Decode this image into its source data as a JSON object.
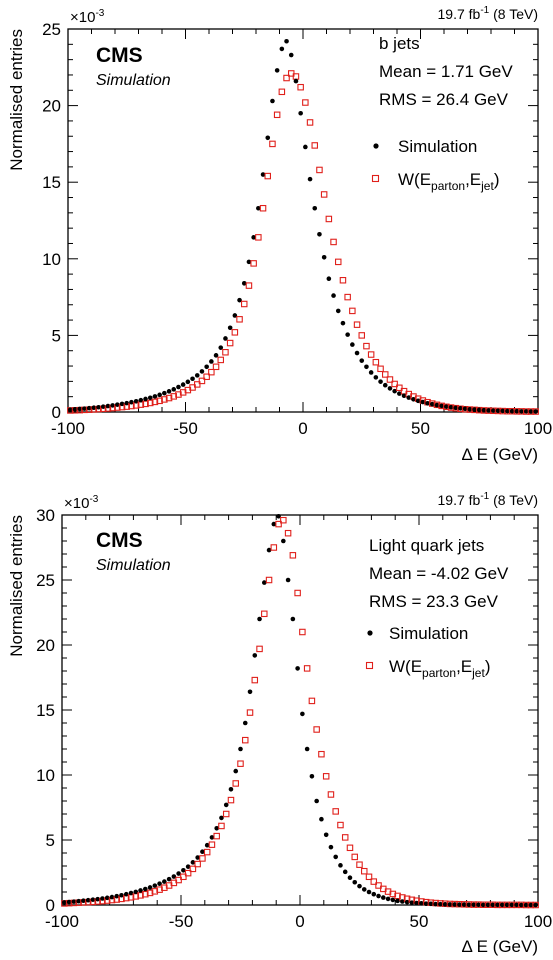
{
  "chart_data": [
    {
      "type": "scatter",
      "title": "",
      "lumi_label": "19.7 fb",
      "lumi_sup": "-1",
      "lumi_rest": " (8 TeV)",
      "exponent_base": "×10",
      "exponent_sup": "-3",
      "experiment": "CMS",
      "sublabel": "Simulation",
      "info_lines": [
        "b jets",
        "Mean = 1.71 GeV",
        "RMS = 26.4 GeV"
      ],
      "legend": {
        "sim": "Simulation",
        "w_main": "W(E",
        "w_sub1": "parton",
        "w_sep": ",E",
        "w_sub2": "jet",
        "w_close": ")"
      },
      "xlabel": "Δ E (GeV)",
      "ylabel": "Normalised entries",
      "xlim": [
        -100,
        100
      ],
      "ylim": [
        0,
        25
      ],
      "xticks": [
        -100,
        -50,
        0,
        50,
        100
      ],
      "yticks": [
        0,
        5,
        10,
        15,
        20,
        25
      ],
      "x": [
        -99,
        -97,
        -95,
        -93,
        -91,
        -89,
        -87,
        -85,
        -83,
        -81,
        -79,
        -77,
        -75,
        -73,
        -71,
        -69,
        -67,
        -65,
        -63,
        -61,
        -59,
        -57,
        -55,
        -53,
        -51,
        -49,
        -47,
        -45,
        -43,
        -41,
        -39,
        -37,
        -35,
        -33,
        -31,
        -29,
        -27,
        -25,
        -23,
        -21,
        -19,
        -17,
        -15,
        -13,
        -11,
        -9,
        -7,
        -5,
        -3,
        -1,
        1,
        3,
        5,
        7,
        9,
        11,
        13,
        15,
        17,
        19,
        21,
        23,
        25,
        27,
        29,
        31,
        33,
        35,
        37,
        39,
        41,
        43,
        45,
        47,
        49,
        51,
        53,
        55,
        57,
        59,
        61,
        63,
        65,
        67,
        69,
        71,
        73,
        75,
        77,
        79,
        81,
        83,
        85,
        87,
        89,
        91,
        93,
        95,
        97,
        99
      ],
      "series": [
        {
          "name": "Simulation",
          "color": "#000000",
          "values": [
            0.15,
            0.18,
            0.2,
            0.22,
            0.25,
            0.28,
            0.31,
            0.35,
            0.39,
            0.43,
            0.48,
            0.53,
            0.58,
            0.64,
            0.7,
            0.77,
            0.85,
            0.93,
            1.02,
            1.12,
            1.23,
            1.35,
            1.48,
            1.63,
            1.79,
            1.97,
            2.17,
            2.39,
            2.65,
            2.95,
            3.3,
            3.7,
            4.2,
            4.8,
            5.5,
            6.3,
            7.3,
            8.4,
            9.8,
            11.4,
            13.3,
            15.5,
            17.9,
            20.3,
            22.3,
            23.7,
            24.2,
            23.3,
            21.6,
            19.5,
            17.3,
            15.2,
            13.3,
            11.6,
            10.1,
            8.7,
            7.6,
            6.6,
            5.8,
            5.05,
            4.4,
            3.85,
            3.35,
            2.95,
            2.58,
            2.26,
            1.98,
            1.75,
            1.54,
            1.36,
            1.2,
            1.06,
            0.94,
            0.83,
            0.73,
            0.65,
            0.57,
            0.51,
            0.45,
            0.4,
            0.35,
            0.31,
            0.27,
            0.24,
            0.21,
            0.18,
            0.16,
            0.14,
            0.12,
            0.1,
            0.09,
            0.08,
            0.07,
            0.06,
            0.05,
            0.05,
            0.04,
            0.04,
            0.03,
            0.03
          ]
        },
        {
          "name": "W(E_parton,E_jet)",
          "color": "#e0201b",
          "values": [
            0.1,
            0.11,
            0.12,
            0.14,
            0.15,
            0.17,
            0.19,
            0.21,
            0.23,
            0.26,
            0.29,
            0.32,
            0.35,
            0.39,
            0.43,
            0.48,
            0.53,
            0.59,
            0.66,
            0.73,
            0.82,
            0.91,
            1.02,
            1.14,
            1.28,
            1.43,
            1.6,
            1.8,
            2.03,
            2.3,
            2.6,
            2.95,
            3.4,
            3.9,
            4.5,
            5.2,
            6.05,
            7.05,
            8.25,
            9.7,
            11.4,
            13.3,
            15.4,
            17.5,
            19.4,
            20.9,
            21.8,
            22.1,
            21.9,
            21.2,
            20.2,
            18.9,
            17.4,
            15.8,
            14.2,
            12.6,
            11.1,
            9.8,
            8.6,
            7.5,
            6.6,
            5.7,
            5.0,
            4.3,
            3.75,
            3.25,
            2.82,
            2.45,
            2.12,
            1.83,
            1.58,
            1.36,
            1.17,
            1.01,
            0.87,
            0.75,
            0.64,
            0.55,
            0.47,
            0.4,
            0.34,
            0.29,
            0.25,
            0.21,
            0.18,
            0.16,
            0.14,
            0.12,
            0.1,
            0.09,
            0.08,
            0.07,
            0.06,
            0.05,
            0.05,
            0.04,
            0.04,
            0.03,
            0.03,
            0.03
          ]
        }
      ]
    },
    {
      "type": "scatter",
      "title": "",
      "lumi_label": "19.7 fb",
      "lumi_sup": "-1",
      "lumi_rest": " (8 TeV)",
      "exponent_base": "×10",
      "exponent_sup": "-3",
      "experiment": "CMS",
      "sublabel": "Simulation",
      "info_lines": [
        "Light quark jets",
        "Mean = -4.02 GeV",
        "RMS = 23.3 GeV"
      ],
      "legend": {
        "sim": "Simulation",
        "w_main": "W(E",
        "w_sub1": "parton",
        "w_sep": ",E",
        "w_sub2": "jet",
        "w_close": ")"
      },
      "xlabel": "Δ E (GeV)",
      "ylabel": "Normalised entries",
      "xlim": [
        -100,
        100
      ],
      "ylim": [
        0,
        30
      ],
      "xticks": [
        -100,
        -50,
        0,
        50,
        100
      ],
      "yticks": [
        0,
        5,
        10,
        15,
        20,
        25,
        30
      ],
      "x": [
        -99,
        -97,
        -95,
        -93,
        -91,
        -89,
        -87,
        -85,
        -83,
        -81,
        -79,
        -77,
        -75,
        -73,
        -71,
        -69,
        -67,
        -65,
        -63,
        -61,
        -59,
        -57,
        -55,
        -53,
        -51,
        -49,
        -47,
        -45,
        -43,
        -41,
        -39,
        -37,
        -35,
        -33,
        -31,
        -29,
        -27,
        -25,
        -23,
        -21,
        -19,
        -17,
        -15,
        -13,
        -11,
        -9,
        -7,
        -5,
        -3,
        -1,
        1,
        3,
        5,
        7,
        9,
        11,
        13,
        15,
        17,
        19,
        21,
        23,
        25,
        27,
        29,
        31,
        33,
        35,
        37,
        39,
        41,
        43,
        45,
        47,
        49,
        51,
        53,
        55,
        57,
        59,
        61,
        63,
        65,
        67,
        69,
        71,
        73,
        75,
        77,
        79,
        81,
        83,
        85,
        87,
        89,
        91,
        93,
        95,
        97,
        99
      ],
      "series": [
        {
          "name": "Simulation",
          "color": "#000000",
          "values": [
            0.2,
            0.23,
            0.26,
            0.29,
            0.33,
            0.37,
            0.41,
            0.45,
            0.5,
            0.55,
            0.61,
            0.68,
            0.75,
            0.83,
            0.92,
            1.01,
            1.12,
            1.23,
            1.35,
            1.49,
            1.64,
            1.8,
            1.99,
            2.19,
            2.42,
            2.67,
            2.95,
            3.28,
            3.65,
            4.1,
            4.6,
            5.2,
            5.9,
            6.7,
            7.7,
            8.9,
            10.3,
            12.0,
            14.0,
            16.4,
            19.2,
            22.0,
            24.8,
            27.3,
            29.3,
            29.9,
            28.0,
            25.0,
            22.0,
            18.2,
            14.7,
            12.0,
            9.9,
            8.0,
            6.6,
            5.4,
            4.45,
            3.7,
            3.05,
            2.55,
            2.1,
            1.75,
            1.45,
            1.2,
            1.0,
            0.83,
            0.69,
            0.57,
            0.47,
            0.39,
            0.32,
            0.27,
            0.22,
            0.18,
            0.15,
            0.13,
            0.1,
            0.09,
            0.07,
            0.06,
            0.05,
            0.04,
            0.04,
            0.03,
            0.03,
            0.02,
            0.02,
            0.02,
            0.01,
            0.01,
            0.01,
            0.01,
            0.01,
            0.01,
            0.01,
            0.01,
            0.0,
            0.0,
            0.0,
            0.0
          ]
        },
        {
          "name": "W(E_parton,E_jet)",
          "color": "#e0201b",
          "values": [
            0.12,
            0.14,
            0.16,
            0.18,
            0.2,
            0.22,
            0.24,
            0.27,
            0.3,
            0.34,
            0.38,
            0.42,
            0.47,
            0.53,
            0.59,
            0.66,
            0.74,
            0.83,
            0.93,
            1.05,
            1.18,
            1.33,
            1.5,
            1.7,
            1.92,
            2.17,
            2.45,
            2.78,
            3.15,
            3.58,
            4.07,
            4.64,
            5.3,
            6.08,
            7.0,
            8.07,
            9.35,
            10.87,
            12.68,
            14.8,
            17.3,
            19.7,
            22.4,
            25.0,
            27.5,
            29.3,
            29.6,
            28.6,
            26.9,
            24.0,
            21.0,
            18.2,
            15.7,
            13.5,
            11.6,
            9.9,
            8.5,
            7.2,
            6.15,
            5.2,
            4.4,
            3.7,
            3.1,
            2.6,
            2.17,
            1.8,
            1.5,
            1.24,
            1.03,
            0.85,
            0.7,
            0.58,
            0.48,
            0.4,
            0.33,
            0.27,
            0.22,
            0.18,
            0.15,
            0.12,
            0.1,
            0.08,
            0.07,
            0.06,
            0.05,
            0.04,
            0.03,
            0.03,
            0.02,
            0.02,
            0.02,
            0.01,
            0.01,
            0.01,
            0.01,
            0.01,
            0.01,
            0.0,
            0.0,
            0.0
          ]
        }
      ]
    }
  ]
}
